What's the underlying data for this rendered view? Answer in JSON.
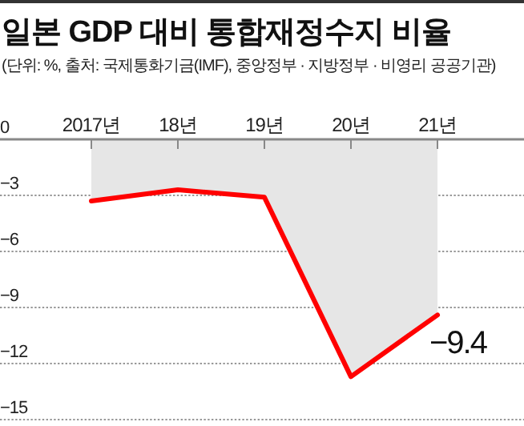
{
  "chart_data": {
    "type": "area",
    "title": "일본 GDP 대비 통합재정수지 비율",
    "subtitle": "(단위: %, 출처: 국제통화기금(IMF), 중앙정부 · 지방정부 · 비영리 공공기관)",
    "categories": [
      "2017년",
      "18년",
      "19년",
      "20년",
      "21년"
    ],
    "series": [
      {
        "color": "#ff0000",
        "values": [
          -3.3,
          -2.7,
          -3.1,
          -12.7,
          -9.4
        ],
        "value_labels": [
          null,
          null,
          null,
          null,
          "−9.4"
        ]
      }
    ],
    "ylim": [
      -15,
      0
    ],
    "yticks": [
      0,
      {
        "value": -3,
        "label": "−3"
      },
      {
        "value": -6,
        "label": "−6"
      },
      {
        "value": -9,
        "label": "−9"
      },
      {
        "value": -12,
        "label": "−12"
      },
      {
        "value": -15,
        "label": "−15"
      }
    ],
    "grid": "y"
  }
}
